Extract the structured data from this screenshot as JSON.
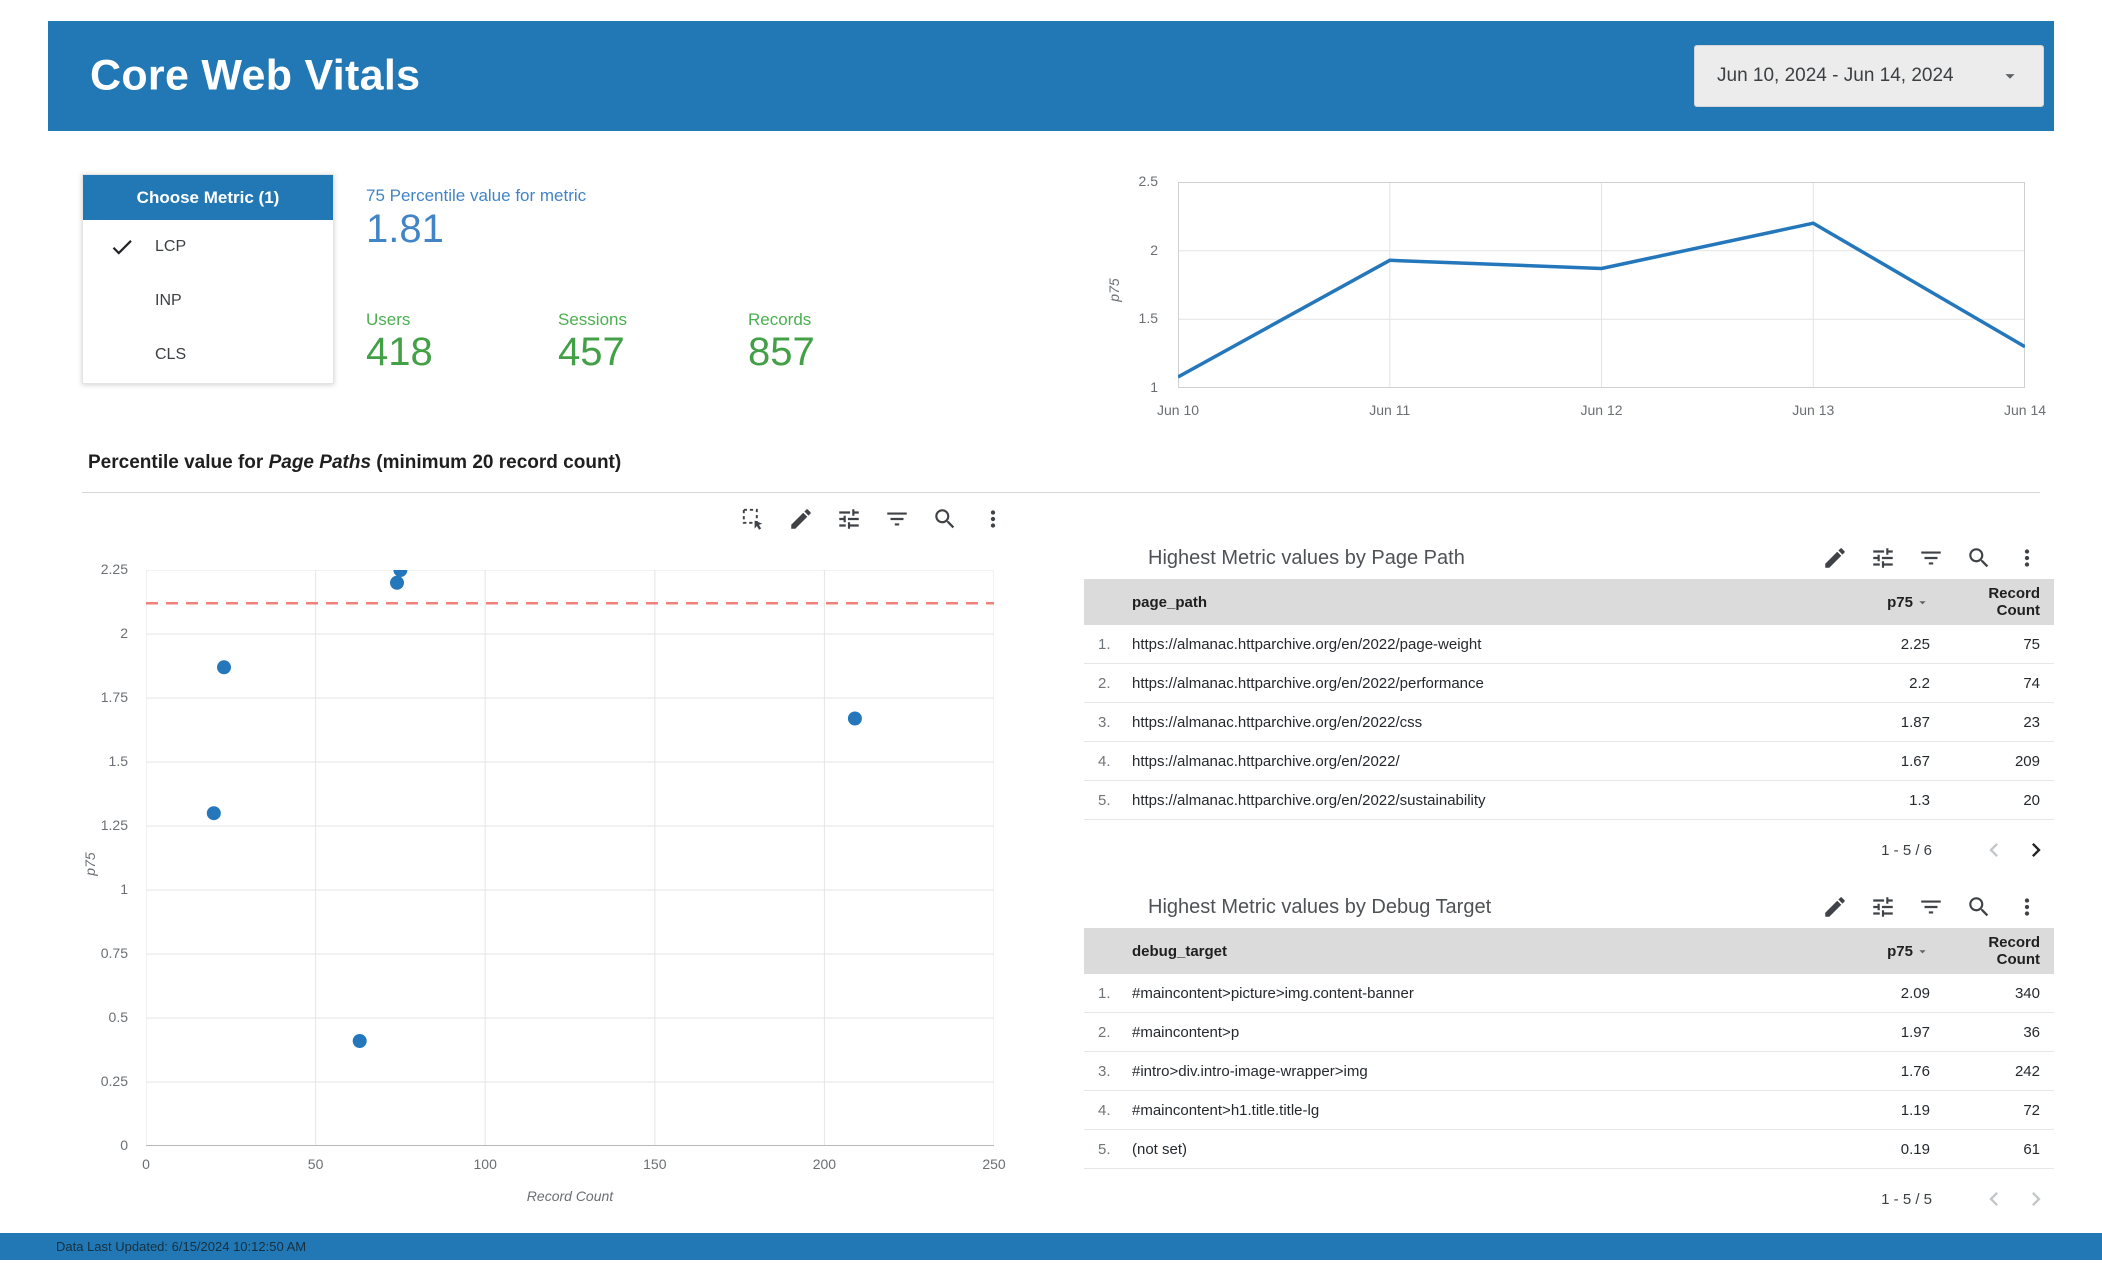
{
  "palette": {
    "header_blue": "#2278b5",
    "accent_blue": "#4285c6",
    "green": "#43a047",
    "line_blue": "#2577bc",
    "reference_red": "#f08078"
  },
  "header": {
    "title": "Core Web Vitals",
    "date_range": "Jun 10, 2024 - Jun 14, 2024"
  },
  "metric_selector": {
    "title": "Choose Metric (1)",
    "options": [
      {
        "label": "LCP",
        "selected": true
      },
      {
        "label": "INP",
        "selected": false
      },
      {
        "label": "CLS",
        "selected": false
      }
    ]
  },
  "scorecards": {
    "percentile": {
      "label": "75 Percentile value for metric",
      "value": "1.81"
    },
    "users": {
      "label": "Users",
      "value": "418"
    },
    "sessions": {
      "label": "Sessions",
      "value": "457"
    },
    "records": {
      "label": "Records",
      "value": "857"
    }
  },
  "section_title": {
    "prefix": "Percentile value for ",
    "italic": "Page Paths",
    "suffix": " (minimum 20 record count)"
  },
  "scatter_toolbar": [
    "marquee-select",
    "edit",
    "tune",
    "filter",
    "zoom",
    "more-vert"
  ],
  "chart_data": [
    {
      "type": "line",
      "title": "p75 by date",
      "x": [
        "Jun 10",
        "Jun 11",
        "Jun 12",
        "Jun 13",
        "Jun 14"
      ],
      "series": [
        {
          "name": "p75",
          "values": [
            1.08,
            1.93,
            1.87,
            2.2,
            1.3
          ]
        }
      ],
      "ylabel": "p75",
      "xlabel": "",
      "ylim": [
        1,
        2.5
      ],
      "yticks": [
        1,
        1.5,
        2,
        2.5
      ],
      "grid": true,
      "legend": "none",
      "line_color": "#2577bc"
    },
    {
      "type": "scatter",
      "title": "Percentile value for Page Paths (minimum 20 record count)",
      "xlabel": "Record Count",
      "ylabel": "p75",
      "xlim": [
        0,
        250
      ],
      "ylim": [
        0,
        2.25
      ],
      "xticks": [
        0,
        50,
        100,
        150,
        200,
        250
      ],
      "yticks": [
        0,
        0.25,
        0.5,
        0.75,
        1,
        1.25,
        1.5,
        1.75,
        2,
        2.25
      ],
      "points": [
        {
          "x": 75,
          "y": 2.25
        },
        {
          "x": 74,
          "y": 2.2
        },
        {
          "x": 23,
          "y": 1.87
        },
        {
          "x": 209,
          "y": 1.67
        },
        {
          "x": 20,
          "y": 1.3
        },
        {
          "x": 63,
          "y": 0.41
        }
      ],
      "reference_line": {
        "y": 2.12,
        "style": "dashed",
        "color": "#f08078"
      },
      "grid": true,
      "point_color": "#2577bc"
    }
  ],
  "tables": [
    {
      "title": "Highest Metric values by Page Path",
      "toolbar": [
        "edit",
        "tune",
        "filter",
        "zoom",
        "more-vert"
      ],
      "columns": [
        "page_path",
        "p75",
        "Record Count"
      ],
      "rows": [
        {
          "index": "1.",
          "label": "https://almanac.httparchive.org/en/2022/page-weight",
          "p75": "2.25",
          "count": "75"
        },
        {
          "index": "2.",
          "label": "https://almanac.httparchive.org/en/2022/performance",
          "p75": "2.2",
          "count": "74"
        },
        {
          "index": "3.",
          "label": "https://almanac.httparchive.org/en/2022/css",
          "p75": "1.87",
          "count": "23"
        },
        {
          "index": "4.",
          "label": "https://almanac.httparchive.org/en/2022/",
          "p75": "1.67",
          "count": "209"
        },
        {
          "index": "5.",
          "label": "https://almanac.httparchive.org/en/2022/sustainability",
          "p75": "1.3",
          "count": "20"
        }
      ],
      "pagination": "1 - 5 / 6",
      "prev_enabled": false,
      "next_enabled": true
    },
    {
      "title": "Highest Metric values by Debug Target",
      "toolbar": [
        "edit",
        "tune",
        "filter",
        "zoom",
        "more-vert"
      ],
      "columns": [
        "debug_target",
        "p75",
        "Record Count"
      ],
      "rows": [
        {
          "index": "1.",
          "label": "#maincontent>picture>img.content-banner",
          "p75": "2.09",
          "count": "340"
        },
        {
          "index": "2.",
          "label": "#maincontent>p",
          "p75": "1.97",
          "count": "36"
        },
        {
          "index": "3.",
          "label": "#intro>div.intro-image-wrapper>img",
          "p75": "1.76",
          "count": "242"
        },
        {
          "index": "4.",
          "label": "#maincontent>h1.title.title-lg",
          "p75": "1.19",
          "count": "72"
        },
        {
          "index": "5.",
          "label": "(not set)",
          "p75": "0.19",
          "count": "61"
        }
      ],
      "pagination": "1 - 5 / 5",
      "prev_enabled": false,
      "next_enabled": false
    }
  ],
  "footer": {
    "last_updated": "Data Last Updated: 6/15/2024 10:12:50 AM"
  }
}
